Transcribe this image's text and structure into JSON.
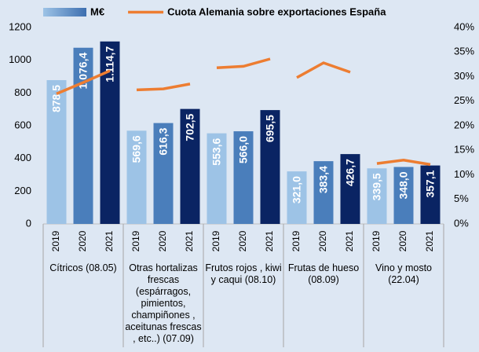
{
  "chart_data": {
    "type": "bar",
    "categories": [
      "2019",
      "2020",
      "2021",
      "2019",
      "2020",
      "2021",
      "2019",
      "2020",
      "2021",
      "2019",
      "2020",
      "2021",
      "2019",
      "2020",
      "2021"
    ],
    "groups": [
      {
        "label": "Cítricos (08.05)"
      },
      {
        "label": "Otras hortalizas frescas (espárragos, pimientos, champiñones , aceitunas frescas , etc..) (07.09)"
      },
      {
        "label": "Frutos rojos , kiwi  y caqui (08.10)"
      },
      {
        "label": "Frutas de hueso (08.09)"
      },
      {
        "label": "Vino y mosto (22.04)"
      }
    ],
    "series": [
      {
        "name": "M€",
        "type": "bar",
        "color": "#4f81c2",
        "colors": [
          "#9dc3e6",
          "#4a7ebb",
          "#0a2463",
          "#9dc3e6",
          "#4a7ebb",
          "#0a2463",
          "#9dc3e6",
          "#4a7ebb",
          "#0a2463",
          "#9dc3e6",
          "#4a7ebb",
          "#0a2463",
          "#9dc3e6",
          "#4a7ebb",
          "#0a2463"
        ],
        "values": [
          878.5,
          1076.4,
          1114.7,
          569.6,
          616.3,
          702.5,
          553.6,
          566.0,
          695.5,
          321.0,
          383.4,
          426.7,
          339.5,
          348.0,
          357.1
        ],
        "value_labels": [
          "878,5",
          "1.076,4",
          "1.114,7",
          "569,6",
          "616,3",
          "702,5",
          "553,6",
          "566,0",
          "695,5",
          "321,0",
          "383,4",
          "426,7",
          "339,5",
          "348,0",
          "357,1"
        ]
      },
      {
        "name": "Cuota Alemania sobre exportaciones España",
        "type": "line",
        "axis": "y2",
        "color": "#ed7d31",
        "values": [
          26.5,
          28.8,
          31.2,
          27.3,
          27.5,
          28.5,
          31.8,
          32.1,
          33.6,
          29.8,
          32.8,
          30.9,
          12.3,
          13.0,
          12.1
        ]
      }
    ],
    "ylim": [
      0,
      1200
    ],
    "yticks": [
      0,
      200,
      400,
      600,
      800,
      1000,
      1200
    ],
    "y2lim": [
      0,
      40
    ],
    "y2ticks": [
      {
        "value": 0,
        "label": "0%"
      },
      {
        "value": 5,
        "label": "5%"
      },
      {
        "value": 10,
        "label": "10%"
      },
      {
        "value": 15,
        "label": "15%"
      },
      {
        "value": 20,
        "label": "20%"
      },
      {
        "value": 25,
        "label": "25%"
      },
      {
        "value": 30,
        "label": "30%"
      },
      {
        "value": 35,
        "label": "35%"
      },
      {
        "value": 40,
        "label": "40%"
      }
    ]
  }
}
